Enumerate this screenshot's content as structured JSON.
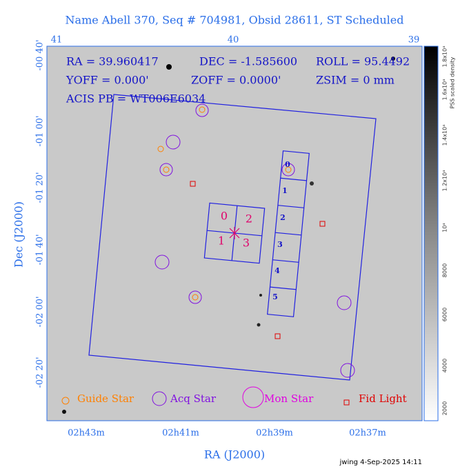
{
  "header": {
    "title": "Name Abell 370, Seq # 704981, Obsid 28611, ST Scheduled"
  },
  "info": [
    "RA = 39.960417",
    "DEC = -1.585600",
    "ROLL = 95.4492",
    "YOFF =   0.000'",
    "ZOFF =  0.0000'",
    "ZSIM = 0 mm",
    "ACIS PB = WT006E6034"
  ],
  "top_axis": {
    "ticks": [
      "41",
      "40",
      "39"
    ]
  },
  "y_axis": {
    "label": "Dec (J2000)",
    "ticks": [
      "-00 40'",
      "-01 00'",
      "-01 20'",
      "-01 40'",
      "-02 00'",
      "-02 20'"
    ]
  },
  "x_axis": {
    "label": "RA (J2000)",
    "ticks": [
      "02h43m",
      "02h41m",
      "02h39m",
      "02h37m"
    ]
  },
  "colorbar": {
    "label": "PSS scaled density",
    "ticks": [
      "2000",
      "4000",
      "6000",
      "8000",
      "10⁴",
      "1.2x10⁴",
      "1.4x10⁴",
      "1.6x10⁴",
      "1.8x10⁴"
    ]
  },
  "i_array": [
    "0",
    "2",
    "1",
    "3"
  ],
  "s_array": [
    "0",
    "1",
    "2",
    "3",
    "4",
    "5"
  ],
  "legend": [
    "Guide Star",
    "Acq Star",
    "Mon Star",
    "Fid Light"
  ],
  "footer": "jwing  4-Sep-2025 14:11"
}
